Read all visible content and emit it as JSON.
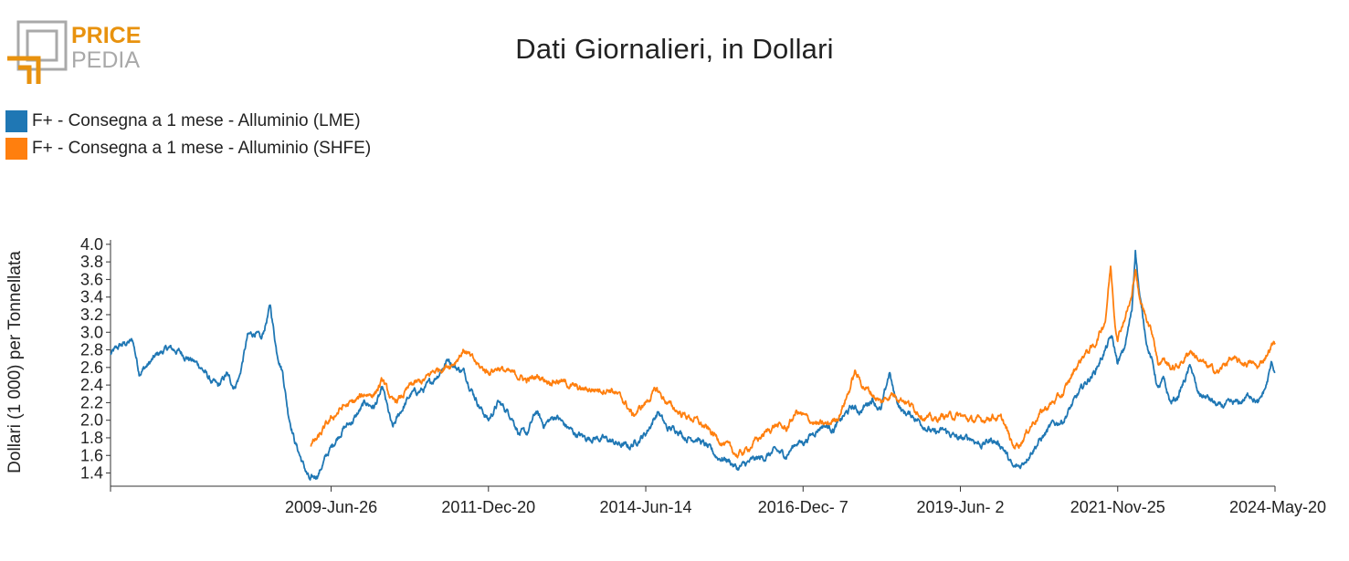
{
  "logo": {
    "line1": "PRICE",
    "line2": "PEDIA",
    "accent": "#e8920e",
    "grey": "#a9a9a9"
  },
  "title": "Dati Giornalieri, in Dollari",
  "chart_data": {
    "type": "line",
    "title": "Dati Giornalieri, in Dollari",
    "ylabel": "Dollari (1 000) per Tonnellata",
    "xlabel": "",
    "ylim": [
      1.25,
      4.05
    ],
    "yticks": [
      1.4,
      1.6,
      1.8,
      2.0,
      2.2,
      2.4,
      2.6,
      2.8,
      3.0,
      3.2,
      3.4,
      3.6,
      3.8,
      4.0
    ],
    "xlim": [
      "2006-01-01",
      "2024-05-20"
    ],
    "xticks": [
      "2009-Jun-26",
      "2011-Dec-20",
      "2014-Jun-14",
      "2016-Dec- 7",
      "2019-Jun- 2",
      "2021-Nov-25",
      "2024-May-20"
    ],
    "xtick_dates": [
      "2009-06-26",
      "2011-12-20",
      "2014-06-14",
      "2016-12-07",
      "2019-06-02",
      "2021-11-25",
      "2024-05-20"
    ],
    "grid": false,
    "legend_position": "top-left",
    "series": [
      {
        "name": "F+ - Consegna a 1 mese - Alluminio (LME)",
        "color": "#1f77b4",
        "points": [
          [
            "2006-01-01",
            2.75
          ],
          [
            "2006-03-01",
            2.85
          ],
          [
            "2006-05-10",
            2.9
          ],
          [
            "2006-06-15",
            2.55
          ],
          [
            "2006-08-01",
            2.62
          ],
          [
            "2006-10-01",
            2.75
          ],
          [
            "2006-12-01",
            2.82
          ],
          [
            "2007-02-01",
            2.78
          ],
          [
            "2007-04-01",
            2.7
          ],
          [
            "2007-06-01",
            2.62
          ],
          [
            "2007-08-01",
            2.45
          ],
          [
            "2007-09-15",
            2.38
          ],
          [
            "2007-11-01",
            2.52
          ],
          [
            "2007-12-15",
            2.38
          ],
          [
            "2008-01-15",
            2.5
          ],
          [
            "2008-03-01",
            2.95
          ],
          [
            "2008-04-15",
            3.0
          ],
          [
            "2008-05-20",
            2.9
          ],
          [
            "2008-07-10",
            3.3
          ],
          [
            "2008-08-15",
            2.8
          ],
          [
            "2008-09-20",
            2.55
          ],
          [
            "2008-10-20",
            2.1
          ],
          [
            "2008-12-01",
            1.75
          ],
          [
            "2009-01-15",
            1.5
          ],
          [
            "2009-02-25",
            1.3
          ],
          [
            "2009-04-15",
            1.4
          ],
          [
            "2009-06-01",
            1.6
          ],
          [
            "2009-07-15",
            1.75
          ],
          [
            "2009-09-01",
            1.9
          ],
          [
            "2009-11-01",
            2.0
          ],
          [
            "2010-01-10",
            2.2
          ],
          [
            "2010-03-01",
            2.15
          ],
          [
            "2010-04-20",
            2.35
          ],
          [
            "2010-06-15",
            1.9
          ],
          [
            "2010-08-01",
            2.1
          ],
          [
            "2010-10-01",
            2.3
          ],
          [
            "2010-12-15",
            2.35
          ],
          [
            "2011-02-01",
            2.45
          ],
          [
            "2011-03-15",
            2.55
          ],
          [
            "2011-05-03",
            2.7
          ],
          [
            "2011-06-15",
            2.6
          ],
          [
            "2011-08-01",
            2.55
          ],
          [
            "2011-09-15",
            2.35
          ],
          [
            "2011-11-01",
            2.15
          ],
          [
            "2011-12-20",
            2.0
          ],
          [
            "2012-02-15",
            2.2
          ],
          [
            "2012-03-15",
            2.15
          ],
          [
            "2012-05-01",
            2.05
          ],
          [
            "2012-06-15",
            1.85
          ],
          [
            "2012-08-01",
            1.85
          ],
          [
            "2012-09-20",
            2.1
          ],
          [
            "2012-11-01",
            1.95
          ],
          [
            "2013-01-15",
            2.05
          ],
          [
            "2013-03-01",
            1.95
          ],
          [
            "2013-05-01",
            1.85
          ],
          [
            "2013-07-01",
            1.8
          ],
          [
            "2013-09-01",
            1.8
          ],
          [
            "2013-11-01",
            1.78
          ],
          [
            "2014-01-15",
            1.72
          ],
          [
            "2014-03-15",
            1.7
          ],
          [
            "2014-06-14",
            1.85
          ],
          [
            "2014-08-25",
            2.1
          ],
          [
            "2014-10-15",
            1.9
          ],
          [
            "2014-12-15",
            1.9
          ],
          [
            "2015-02-01",
            1.8
          ],
          [
            "2015-04-01",
            1.8
          ],
          [
            "2015-06-01",
            1.7
          ],
          [
            "2015-08-01",
            1.58
          ],
          [
            "2015-10-01",
            1.55
          ],
          [
            "2015-11-25",
            1.45
          ],
          [
            "2016-01-10",
            1.5
          ],
          [
            "2016-03-01",
            1.55
          ],
          [
            "2016-05-01",
            1.58
          ],
          [
            "2016-07-01",
            1.65
          ],
          [
            "2016-09-01",
            1.6
          ],
          [
            "2016-11-01",
            1.75
          ],
          [
            "2016-12-07",
            1.75
          ],
          [
            "2017-02-01",
            1.85
          ],
          [
            "2017-04-01",
            1.95
          ],
          [
            "2017-06-01",
            1.9
          ],
          [
            "2017-08-01",
            2.05
          ],
          [
            "2017-09-15",
            2.15
          ],
          [
            "2017-11-01",
            2.1
          ],
          [
            "2018-01-10",
            2.25
          ],
          [
            "2018-03-01",
            2.1
          ],
          [
            "2018-04-19",
            2.55
          ],
          [
            "2018-05-15",
            2.3
          ],
          [
            "2018-07-01",
            2.1
          ],
          [
            "2018-09-01",
            2.05
          ],
          [
            "2018-11-01",
            1.95
          ],
          [
            "2019-01-01",
            1.85
          ],
          [
            "2019-03-01",
            1.88
          ],
          [
            "2019-06-02",
            1.78
          ],
          [
            "2019-08-01",
            1.8
          ],
          [
            "2019-10-01",
            1.72
          ],
          [
            "2019-12-01",
            1.78
          ],
          [
            "2020-02-01",
            1.7
          ],
          [
            "2020-04-01",
            1.45
          ],
          [
            "2020-05-15",
            1.48
          ],
          [
            "2020-07-15",
            1.65
          ],
          [
            "2020-09-15",
            1.8
          ],
          [
            "2020-11-15",
            1.95
          ],
          [
            "2021-01-15",
            2.0
          ],
          [
            "2021-03-15",
            2.2
          ],
          [
            "2021-05-15",
            2.4
          ],
          [
            "2021-07-15",
            2.55
          ],
          [
            "2021-09-15",
            2.8
          ],
          [
            "2021-10-20",
            2.95
          ],
          [
            "2021-11-25",
            2.65
          ],
          [
            "2022-01-01",
            2.8
          ],
          [
            "2022-02-15",
            3.25
          ],
          [
            "2022-03-07",
            3.95
          ],
          [
            "2022-04-01",
            3.4
          ],
          [
            "2022-05-15",
            2.85
          ],
          [
            "2022-06-20",
            2.6
          ],
          [
            "2022-07-15",
            2.35
          ],
          [
            "2022-08-15",
            2.45
          ],
          [
            "2022-09-25",
            2.2
          ],
          [
            "2022-11-01",
            2.25
          ],
          [
            "2022-12-15",
            2.45
          ],
          [
            "2023-01-20",
            2.62
          ],
          [
            "2023-03-01",
            2.3
          ],
          [
            "2023-05-01",
            2.25
          ],
          [
            "2023-07-01",
            2.15
          ],
          [
            "2023-09-01",
            2.18
          ],
          [
            "2023-11-01",
            2.2
          ],
          [
            "2024-01-01",
            2.3
          ],
          [
            "2024-02-15",
            2.18
          ],
          [
            "2024-04-01",
            2.4
          ],
          [
            "2024-05-01",
            2.65
          ],
          [
            "2024-05-20",
            2.55
          ]
        ]
      },
      {
        "name": "F+ - Consegna a 1 mese - Alluminio (SHFE)",
        "color": "#ff7f0e",
        "points": [
          [
            "2009-03-01",
            1.72
          ],
          [
            "2009-04-15",
            1.8
          ],
          [
            "2009-06-01",
            1.95
          ],
          [
            "2009-07-15",
            2.05
          ],
          [
            "2009-09-01",
            2.15
          ],
          [
            "2009-11-01",
            2.2
          ],
          [
            "2010-01-10",
            2.3
          ],
          [
            "2010-03-01",
            2.3
          ],
          [
            "2010-04-20",
            2.45
          ],
          [
            "2010-06-15",
            2.2
          ],
          [
            "2010-08-01",
            2.25
          ],
          [
            "2010-10-01",
            2.4
          ],
          [
            "2010-12-15",
            2.45
          ],
          [
            "2011-02-01",
            2.55
          ],
          [
            "2011-04-01",
            2.6
          ],
          [
            "2011-06-01",
            2.65
          ],
          [
            "2011-08-01",
            2.8
          ],
          [
            "2011-09-15",
            2.7
          ],
          [
            "2011-11-01",
            2.6
          ],
          [
            "2011-12-20",
            2.55
          ],
          [
            "2012-02-15",
            2.6
          ],
          [
            "2012-04-01",
            2.55
          ],
          [
            "2012-06-15",
            2.5
          ],
          [
            "2012-08-01",
            2.45
          ],
          [
            "2012-10-01",
            2.5
          ],
          [
            "2012-12-01",
            2.45
          ],
          [
            "2013-02-01",
            2.45
          ],
          [
            "2013-04-01",
            2.4
          ],
          [
            "2013-06-01",
            2.35
          ],
          [
            "2013-08-01",
            2.35
          ],
          [
            "2013-10-01",
            2.35
          ],
          [
            "2013-12-01",
            2.35
          ],
          [
            "2014-02-15",
            2.2
          ],
          [
            "2014-04-01",
            2.05
          ],
          [
            "2014-06-14",
            2.2
          ],
          [
            "2014-08-15",
            2.35
          ],
          [
            "2014-10-15",
            2.2
          ],
          [
            "2014-12-15",
            2.1
          ],
          [
            "2015-02-01",
            2.05
          ],
          [
            "2015-04-01",
            2.0
          ],
          [
            "2015-06-01",
            1.9
          ],
          [
            "2015-08-01",
            1.8
          ],
          [
            "2015-10-01",
            1.7
          ],
          [
            "2015-11-25",
            1.6
          ],
          [
            "2016-01-10",
            1.65
          ],
          [
            "2016-03-01",
            1.75
          ],
          [
            "2016-05-01",
            1.85
          ],
          [
            "2016-07-01",
            1.95
          ],
          [
            "2016-09-01",
            1.9
          ],
          [
            "2016-11-01",
            2.1
          ],
          [
            "2016-12-07",
            2.05
          ],
          [
            "2017-01-15",
            2.0
          ],
          [
            "2017-03-01",
            1.95
          ],
          [
            "2017-05-01",
            1.95
          ],
          [
            "2017-07-01",
            2.05
          ],
          [
            "2017-09-01",
            2.35
          ],
          [
            "2017-10-01",
            2.55
          ],
          [
            "2017-11-15",
            2.4
          ],
          [
            "2018-01-10",
            2.3
          ],
          [
            "2018-03-01",
            2.2
          ],
          [
            "2018-05-01",
            2.3
          ],
          [
            "2018-07-01",
            2.25
          ],
          [
            "2018-09-01",
            2.15
          ],
          [
            "2018-11-01",
            2.05
          ],
          [
            "2019-01-01",
            2.0
          ],
          [
            "2019-03-01",
            2.05
          ],
          [
            "2019-06-02",
            2.05
          ],
          [
            "2019-08-01",
            2.0
          ],
          [
            "2019-10-01",
            2.0
          ],
          [
            "2019-12-01",
            2.05
          ],
          [
            "2020-02-01",
            2.0
          ],
          [
            "2020-04-01",
            1.7
          ],
          [
            "2020-05-15",
            1.75
          ],
          [
            "2020-07-15",
            1.95
          ],
          [
            "2020-09-15",
            2.1
          ],
          [
            "2020-11-15",
            2.2
          ],
          [
            "2021-01-15",
            2.3
          ],
          [
            "2021-03-15",
            2.55
          ],
          [
            "2021-05-15",
            2.75
          ],
          [
            "2021-07-15",
            2.85
          ],
          [
            "2021-09-15",
            3.15
          ],
          [
            "2021-10-15",
            3.75
          ],
          [
            "2021-11-10",
            3.1
          ],
          [
            "2021-11-25",
            2.95
          ],
          [
            "2022-01-01",
            3.15
          ],
          [
            "2022-02-15",
            3.4
          ],
          [
            "2022-03-07",
            3.75
          ],
          [
            "2022-04-01",
            3.35
          ],
          [
            "2022-05-15",
            3.15
          ],
          [
            "2022-06-20",
            2.95
          ],
          [
            "2022-07-15",
            2.65
          ],
          [
            "2022-08-15",
            2.7
          ],
          [
            "2022-09-25",
            2.6
          ],
          [
            "2022-11-01",
            2.6
          ],
          [
            "2022-12-15",
            2.7
          ],
          [
            "2023-01-20",
            2.8
          ],
          [
            "2023-03-01",
            2.7
          ],
          [
            "2023-05-01",
            2.6
          ],
          [
            "2023-07-01",
            2.55
          ],
          [
            "2023-09-01",
            2.7
          ],
          [
            "2023-11-01",
            2.65
          ],
          [
            "2024-01-01",
            2.65
          ],
          [
            "2024-02-15",
            2.6
          ],
          [
            "2024-04-01",
            2.75
          ],
          [
            "2024-05-01",
            2.85
          ],
          [
            "2024-05-20",
            2.88
          ]
        ]
      }
    ]
  }
}
